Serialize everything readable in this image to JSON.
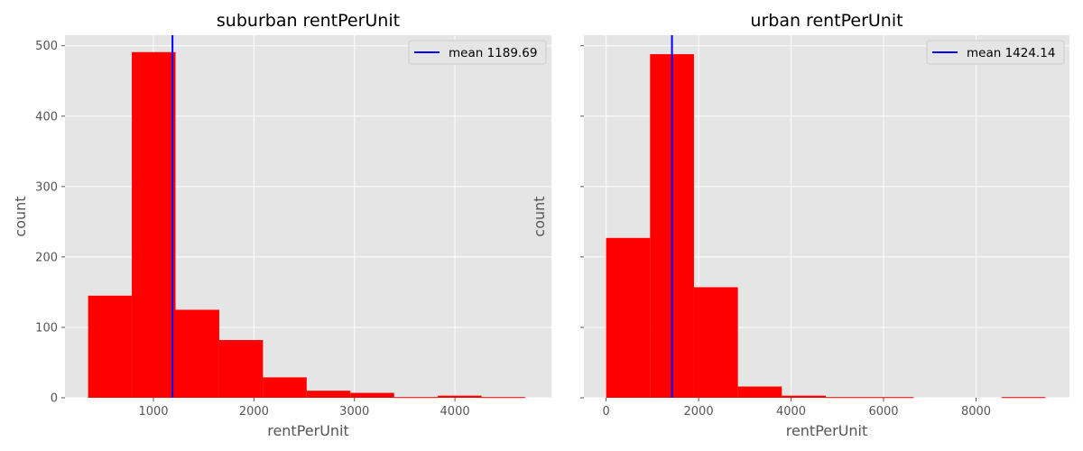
{
  "chart_data": [
    {
      "type": "bar",
      "subtype": "histogram",
      "title": "suburban rentPerUnit",
      "xlabel": "rentPerUnit",
      "ylabel": "count",
      "xlim": [
        120,
        4960
      ],
      "ylim": [
        0,
        515
      ],
      "xticks": [
        1000,
        2000,
        3000,
        4000
      ],
      "yticks": [
        0,
        100,
        200,
        300,
        400,
        500
      ],
      "xtick_labels": [
        "1000",
        "2000",
        "3000",
        "4000"
      ],
      "ytick_labels": [
        "0",
        "100",
        "200",
        "300",
        "400",
        "500"
      ],
      "bins": [
        {
          "start": 350,
          "end": 785,
          "count": 145
        },
        {
          "start": 785,
          "end": 1220,
          "count": 491
        },
        {
          "start": 1220,
          "end": 1655,
          "count": 125
        },
        {
          "start": 1655,
          "end": 2090,
          "count": 82
        },
        {
          "start": 2090,
          "end": 2525,
          "count": 29
        },
        {
          "start": 2525,
          "end": 2960,
          "count": 10
        },
        {
          "start": 2960,
          "end": 3395,
          "count": 7
        },
        {
          "start": 3395,
          "end": 3830,
          "count": 1
        },
        {
          "start": 3830,
          "end": 4265,
          "count": 3
        },
        {
          "start": 4265,
          "end": 4700,
          "count": 1
        }
      ],
      "bar_color": "#ff0000",
      "mean": {
        "value": 1189.69,
        "label": "mean 1189.69",
        "color": "#0000ff"
      },
      "legend_position": "top-right",
      "grid": true,
      "background": "#e5e5e5"
    },
    {
      "type": "bar",
      "subtype": "histogram",
      "title": "urban rentPerUnit",
      "xlabel": "rentPerUnit",
      "ylabel": "count",
      "xlim": [
        -480,
        10020
      ],
      "ylim": [
        0,
        515
      ],
      "xticks": [
        0,
        2000,
        4000,
        6000,
        8000
      ],
      "yticks": [
        0,
        100,
        200,
        300,
        400,
        500
      ],
      "xtick_labels": [
        "0",
        "2000",
        "4000",
        "6000",
        "8000"
      ],
      "ytick_labels": [],
      "bins": [
        {
          "start": 0,
          "end": 950,
          "count": 227
        },
        {
          "start": 950,
          "end": 1900,
          "count": 488
        },
        {
          "start": 1900,
          "end": 2850,
          "count": 157
        },
        {
          "start": 2850,
          "end": 3800,
          "count": 16
        },
        {
          "start": 3800,
          "end": 4750,
          "count": 3
        },
        {
          "start": 4750,
          "end": 5700,
          "count": 1
        },
        {
          "start": 5700,
          "end": 6650,
          "count": 1
        },
        {
          "start": 6650,
          "end": 7600,
          "count": 0
        },
        {
          "start": 7600,
          "end": 8550,
          "count": 0
        },
        {
          "start": 8550,
          "end": 9500,
          "count": 1
        }
      ],
      "bar_color": "#ff0000",
      "mean": {
        "value": 1424.14,
        "label": "mean 1424.14",
        "color": "#0000ff"
      },
      "legend_position": "top-right",
      "grid": true,
      "background": "#e5e5e5"
    }
  ]
}
